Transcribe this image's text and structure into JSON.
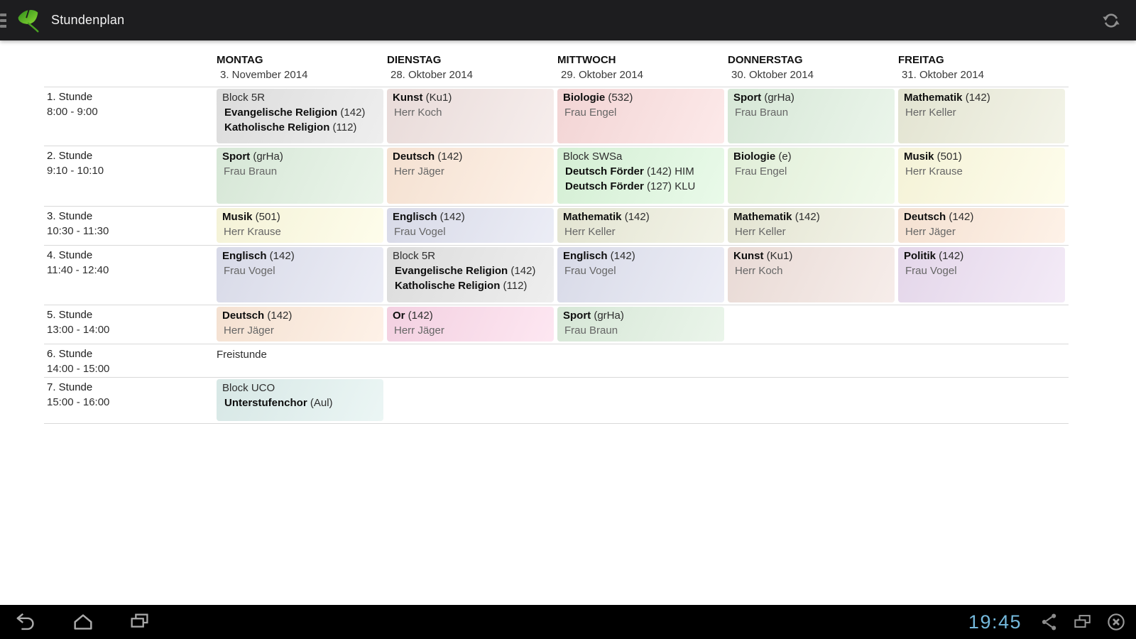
{
  "actionbar": {
    "title": "Stundenplan"
  },
  "statusbar": {
    "clock": "19:45"
  },
  "icons": {
    "menu": "hamburger",
    "app_logo": "ginkgo-leaf",
    "refresh": "sync-arrows",
    "nav": [
      "back",
      "home",
      "recents"
    ],
    "status_tray": [
      "share",
      "screenshot-windows",
      "close-circle"
    ]
  },
  "colors": {
    "actionbar_bg": "#1d1d1f",
    "navbar_bg": "#000000",
    "clock_blue": "#74b9dc",
    "separator": "#d9d9d9"
  },
  "timetable": {
    "days": [
      {
        "name": "MONTAG",
        "date": "3. November 2014"
      },
      {
        "name": "DIENSTAG",
        "date": "28. Oktober 2014"
      },
      {
        "name": "MITTWOCH",
        "date": "29. Oktober 2014"
      },
      {
        "name": "DONNERSTAG",
        "date": "30. Oktober 2014"
      },
      {
        "name": "FREITAG",
        "date": "31. Oktober 2014"
      }
    ],
    "rows": [
      {
        "label": "1. Stunde",
        "time": "8:00 - 9:00",
        "cells": [
          {
            "bg": "#e4e4e4",
            "lines": [
              {
                "n": "Block 5R"
              },
              {
                "sub": true,
                "b": "Evangelische Religion",
                "n": " (142)"
              },
              {
                "sub": true,
                "b": "Katholische Religion",
                "n": " (112)"
              }
            ]
          },
          {
            "bg": "#f1e3e1",
            "lines": [
              {
                "b": "Kunst",
                "n": " (Ku1)"
              },
              {
                "muted": true,
                "n": "Herr Koch"
              }
            ]
          },
          {
            "bg": "#fbdcdc",
            "lines": [
              {
                "b": "Biologie",
                "n": " (532)"
              },
              {
                "muted": true,
                "n": "Frau Engel"
              }
            ]
          },
          {
            "bg": "#deefde",
            "lines": [
              {
                "b": "Sport",
                "n": " (grHa)"
              },
              {
                "muted": true,
                "n": "Frau Braun"
              }
            ]
          },
          {
            "bg": "#ebecd9",
            "lines": [
              {
                "b": "Mathematik",
                "n": " (142)"
              },
              {
                "muted": true,
                "n": "Herr Keller"
              }
            ]
          }
        ]
      },
      {
        "label": "2. Stunde",
        "time": "9:10 - 10:10",
        "cells": [
          {
            "bg": "#deefde",
            "lines": [
              {
                "b": "Sport",
                "n": " (grHa)"
              },
              {
                "muted": true,
                "n": "Frau Braun"
              }
            ]
          },
          {
            "bg": "#fde9d9",
            "lines": [
              {
                "b": "Deutsch",
                "n": " (142)"
              },
              {
                "muted": true,
                "n": "Herr Jäger"
              }
            ]
          },
          {
            "bg": "#dcf7dc",
            "lines": [
              {
                "n": "Block SWSa"
              },
              {
                "sub": true,
                "b": "Deutsch Förder",
                "n": " (142) HIM"
              },
              {
                "sub": true,
                "b": "Deutsch Förder",
                "n": " (127) KLU"
              }
            ]
          },
          {
            "bg": "#e9f7e0",
            "lines": [
              {
                "b": "Biologie",
                "n": " (e)"
              },
              {
                "muted": true,
                "n": "Frau Engel"
              }
            ]
          },
          {
            "bg": "#fdfbdf",
            "lines": [
              {
                "b": "Musik",
                "n": " (501)"
              },
              {
                "muted": true,
                "n": "Herr Krause"
              }
            ]
          }
        ]
      },
      {
        "label": "3. Stunde",
        "time": "10:30 - 11:30",
        "cells": [
          {
            "bg": "#fdfbdf",
            "lines": [
              {
                "b": "Musik",
                "n": " (501)"
              },
              {
                "muted": true,
                "n": "Herr Krause"
              }
            ]
          },
          {
            "bg": "#e0e2f0",
            "lines": [
              {
                "b": "Englisch",
                "n": " (142)"
              },
              {
                "muted": true,
                "n": "Frau Vogel"
              }
            ]
          },
          {
            "bg": "#ebecd9",
            "lines": [
              {
                "b": "Mathematik",
                "n": " (142)"
              },
              {
                "muted": true,
                "n": "Herr Keller"
              }
            ]
          },
          {
            "bg": "#ebecd9",
            "lines": [
              {
                "b": "Mathematik",
                "n": " (142)"
              },
              {
                "muted": true,
                "n": "Herr Keller"
              }
            ]
          },
          {
            "bg": "#fde9d9",
            "lines": [
              {
                "b": "Deutsch",
                "n": " (142)"
              },
              {
                "muted": true,
                "n": "Herr Jäger"
              }
            ]
          }
        ]
      },
      {
        "label": "4. Stunde",
        "time": "11:40 - 12:40",
        "cells": [
          {
            "bg": "#e0e2f0",
            "lines": [
              {
                "b": "Englisch",
                "n": " (142)"
              },
              {
                "muted": true,
                "n": "Frau Vogel"
              }
            ]
          },
          {
            "bg": "#e4e4e4",
            "lines": [
              {
                "n": "Block 5R"
              },
              {
                "sub": true,
                "b": "Evangelische Religion",
                "n": " (142)"
              },
              {
                "sub": true,
                "b": "Katholische Religion",
                "n": " (112)"
              }
            ]
          },
          {
            "bg": "#e0e2f0",
            "lines": [
              {
                "b": "Englisch",
                "n": " (142)"
              },
              {
                "muted": true,
                "n": "Frau Vogel"
              }
            ]
          },
          {
            "bg": "#f1e2dd",
            "lines": [
              {
                "b": "Kunst",
                "n": " (Ku1)"
              },
              {
                "muted": true,
                "n": "Herr Koch"
              }
            ]
          },
          {
            "bg": "#ecdef2",
            "lines": [
              {
                "b": "Politik",
                "n": " (142)"
              },
              {
                "muted": true,
                "n": "Frau Vogel"
              }
            ]
          }
        ]
      },
      {
        "label": "5. Stunde",
        "time": "13:00 - 14:00",
        "cells": [
          {
            "bg": "#fde9d9",
            "lines": [
              {
                "b": "Deutsch",
                "n": " (142)"
              },
              {
                "muted": true,
                "n": "Herr Jäger"
              }
            ]
          },
          {
            "bg": "#fcd8e9",
            "lines": [
              {
                "b": "Or",
                "n": " (142)"
              },
              {
                "muted": true,
                "n": "Herr Jäger"
              }
            ]
          },
          {
            "bg": "#deefde",
            "lines": [
              {
                "b": "Sport",
                "n": " (grHa)"
              },
              {
                "muted": true,
                "n": "Frau Braun"
              }
            ]
          },
          null,
          null
        ]
      },
      {
        "label": "6. Stunde",
        "time": "14:00 - 15:00",
        "cells": [
          {
            "plain": true,
            "lines": [
              {
                "n": "Freistunde"
              }
            ]
          },
          null,
          null,
          null,
          null
        ]
      },
      {
        "label": "7. Stunde",
        "time": "15:00 - 16:00",
        "cells": [
          {
            "bg": "#dff0ee",
            "lines": [
              {
                "n": "Block UCO"
              },
              {
                "sub": true,
                "b": "Unterstufenchor",
                "n": " (Aul)"
              }
            ]
          },
          null,
          null,
          null,
          null
        ]
      }
    ]
  }
}
